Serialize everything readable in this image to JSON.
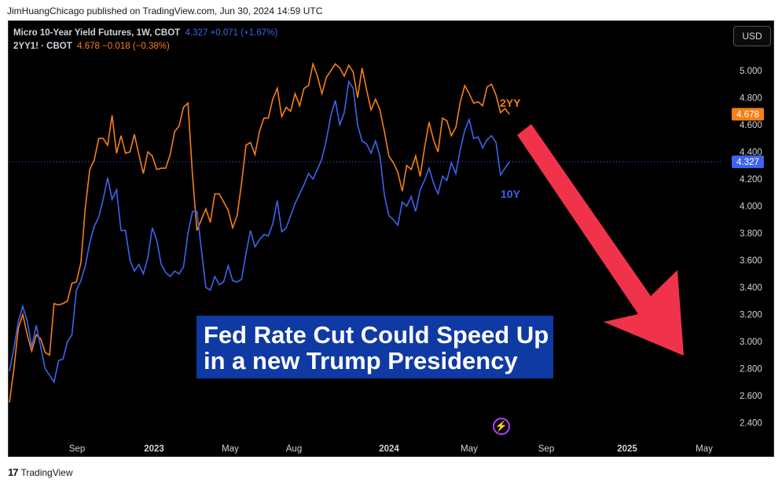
{
  "attribution": "JimHuangChicago published on TradingView.com, Jun 30, 2024 14:59 UTC",
  "legend": {
    "line1_symbol": "Micro 10-Year Yield Futures, 1W, CBOT",
    "line1_values": "4.327  +0.071 (+1.67%)",
    "line2_symbol": "2YY1! · CBOT",
    "line2_values": "4.678  −0.018 (−0.38%)"
  },
  "currency_button": "USD",
  "banner": {
    "line1": "Fed Rate Cut Could Speed Up",
    "line2": "in a new Trump Presidency"
  },
  "footer": {
    "logo": "17",
    "brand": "TradingView"
  },
  "colors": {
    "ten_year": "#3c64f0",
    "two_year": "#f57f17",
    "arrow": "#f0334a",
    "banner": "#0f3aa3"
  },
  "chart_data": {
    "type": "line",
    "x_tick_labels": [
      "Sep",
      "2023",
      "May",
      "Aug",
      "2024",
      "May",
      "Sep",
      "2025",
      "May"
    ],
    "y_ticks": [
      2.4,
      2.6,
      2.8,
      3.0,
      3.2,
      3.4,
      3.6,
      3.8,
      4.0,
      4.2,
      4.4,
      4.6,
      4.8,
      5.0
    ],
    "y_tick_labels": [
      "2.400",
      "2.600",
      "2.800",
      "3.000",
      "3.200",
      "3.400",
      "3.600",
      "3.800",
      "4.000",
      "4.200",
      "4.400",
      "4.600",
      "4.800",
      "5.000"
    ],
    "ylim": [
      2.3,
      5.2
    ],
    "series": [
      {
        "name": "10Y",
        "last_value_label": "4.327",
        "values": [
          2.78,
          2.95,
          3.15,
          3.26,
          3.15,
          2.96,
          3.12,
          2.96,
          2.8,
          2.75,
          2.7,
          2.86,
          2.87,
          3.0,
          3.05,
          3.38,
          3.45,
          3.56,
          3.73,
          3.85,
          3.92,
          4.05,
          4.21,
          4.05,
          4.12,
          3.82,
          3.82,
          3.6,
          3.52,
          3.57,
          3.5,
          3.62,
          3.84,
          3.75,
          3.57,
          3.51,
          3.48,
          3.52,
          3.5,
          3.55,
          3.8,
          3.96,
          3.96,
          3.68,
          3.4,
          3.38,
          3.48,
          3.42,
          3.44,
          3.56,
          3.45,
          3.44,
          3.46,
          3.65,
          3.82,
          3.7,
          3.75,
          3.79,
          3.78,
          3.87,
          4.04,
          3.81,
          3.84,
          3.93,
          4.02,
          4.09,
          4.16,
          4.24,
          4.2,
          4.27,
          4.35,
          4.49,
          4.67,
          4.78,
          4.6,
          4.69,
          4.92,
          4.87,
          4.6,
          4.48,
          4.46,
          4.39,
          4.48,
          4.37,
          4.08,
          3.93,
          3.9,
          3.86,
          4.03,
          4.0,
          4.07,
          3.96,
          4.12,
          4.19,
          4.28,
          4.17,
          4.09,
          4.22,
          4.19,
          4.32,
          4.24,
          4.42,
          4.56,
          4.64,
          4.5,
          4.51,
          4.43,
          4.49,
          4.52,
          4.47,
          4.23,
          4.28,
          4.327
        ]
      },
      {
        "name": "2YY",
        "last_value_label": "4.678",
        "values": [
          2.55,
          2.8,
          3.1,
          3.2,
          3.05,
          2.93,
          3.05,
          3.02,
          2.92,
          2.9,
          3.28,
          3.27,
          3.28,
          3.3,
          3.43,
          3.44,
          3.58,
          3.99,
          4.27,
          4.34,
          4.5,
          4.5,
          4.45,
          4.67,
          4.39,
          4.52,
          4.39,
          4.4,
          4.53,
          4.38,
          4.24,
          4.4,
          4.37,
          4.27,
          4.28,
          4.28,
          4.38,
          4.55,
          4.59,
          4.73,
          4.76,
          4.23,
          3.82,
          3.9,
          3.98,
          3.88,
          4.09,
          4.09,
          4.03,
          3.97,
          3.84,
          3.93,
          4.17,
          4.45,
          4.47,
          4.38,
          4.55,
          4.65,
          4.65,
          4.79,
          4.87,
          4.66,
          4.73,
          4.7,
          4.83,
          4.74,
          4.87,
          4.89,
          5.05,
          4.96,
          4.83,
          4.95,
          5.0,
          5.05,
          5.02,
          4.96,
          5.04,
          4.99,
          4.8,
          5.02,
          4.86,
          4.71,
          4.79,
          4.71,
          4.55,
          4.37,
          4.32,
          4.25,
          4.11,
          4.3,
          4.27,
          4.37,
          4.22,
          4.43,
          4.62,
          4.49,
          4.4,
          4.65,
          4.63,
          4.52,
          4.58,
          4.77,
          4.89,
          4.83,
          4.76,
          4.77,
          4.74,
          4.88,
          4.9,
          4.82,
          4.69,
          4.72,
          4.678
        ]
      }
    ],
    "annotations": [
      {
        "text": "2YY"
      },
      {
        "text": "10Y"
      }
    ]
  }
}
